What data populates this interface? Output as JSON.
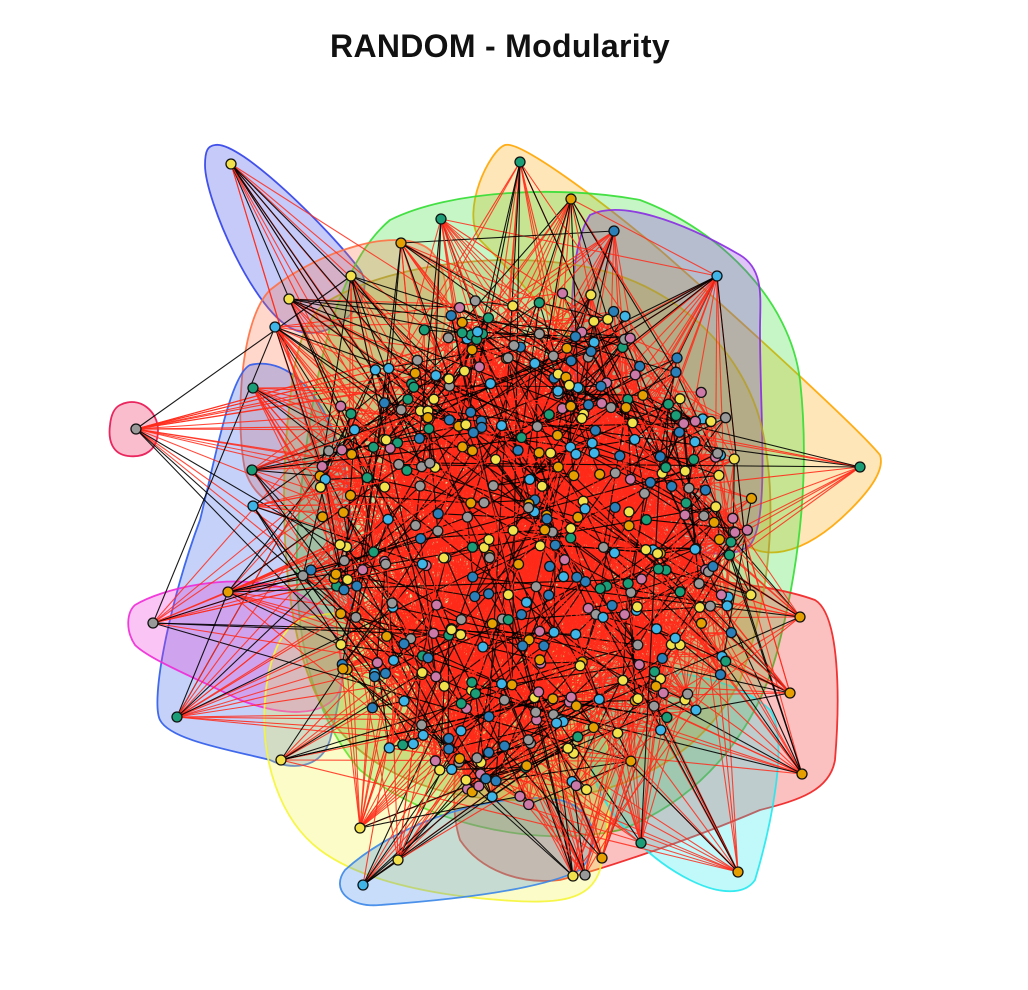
{
  "title": "RANDOM - Modularity",
  "colors": {
    "edge_between": "#ff2a1a",
    "edge_within": "#000000",
    "node_stroke": "#111111",
    "node_palette": [
      "#2a7fb8",
      "#3fb4e6",
      "#1b9e77",
      "#f2e14a",
      "#e69f00",
      "#cc79a7",
      "#999999"
    ]
  },
  "communities": [
    {
      "name": "blue-community",
      "color": "#3040e8"
    },
    {
      "name": "orange-community",
      "color": "#ffa500"
    },
    {
      "name": "green-community",
      "color": "#33dd33"
    },
    {
      "name": "purple-community",
      "color": "#8a2be2"
    },
    {
      "name": "salmon-community",
      "color": "#ff7043"
    },
    {
      "name": "royal-blue-community",
      "color": "#2f5bea"
    },
    {
      "name": "pink-community",
      "color": "#e8124f"
    },
    {
      "name": "magenta-community",
      "color": "#ee2ad6"
    },
    {
      "name": "red-community",
      "color": "#f02020"
    },
    {
      "name": "yellow-community",
      "color": "#f5f53a"
    },
    {
      "name": "cyan-community",
      "color": "#22e8ee"
    },
    {
      "name": "light-blue-community",
      "color": "#3a86e8"
    },
    {
      "name": "olive-community",
      "color": "#b5a030"
    }
  ]
}
